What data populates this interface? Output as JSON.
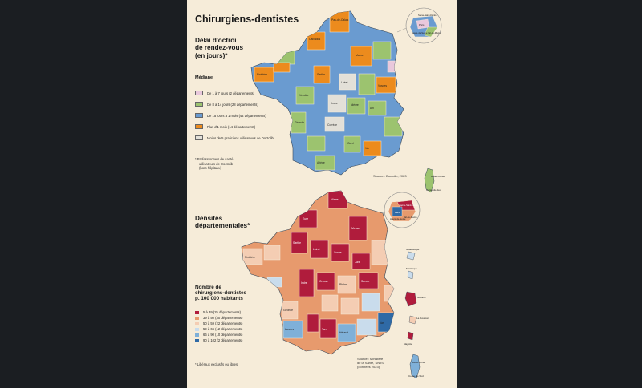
{
  "title": "Chirurgiens-dentistes",
  "map1": {
    "heading": [
      "Délai d'octroi",
      "de rendez-vous",
      "(en jours)*"
    ],
    "subheading": "Médiane",
    "legend": [
      {
        "label": "De 1 à 7 jours (2 départements)",
        "color": "#e9c8dc"
      },
      {
        "label": "De 8 à 14 jours (28 départements)",
        "color": "#9cc36f"
      },
      {
        "label": "De 15 jours à 1 mois (44 départements)",
        "color": "#6a9bd0"
      },
      {
        "label": "Plus d'1 mois (14 départements)",
        "color": "#ec8b1d"
      },
      {
        "label": "Moins de 5 praticiens utilisateurs de Doctolib",
        "color": "#e3e0d8"
      }
    ],
    "footnote": [
      "* Professionnels de santé",
      "utilisateurs de Doctolib",
      "(hors hôpitaux)"
    ],
    "source": "Source : Doctolib, 2023",
    "inset": [
      "Seine-Saint-Denis",
      "Paris",
      "Val-de-Marne",
      "Hauts-de-Seine"
    ],
    "corse": [
      "Haute-Corse",
      "Corse-du-Sud"
    ]
  },
  "map2": {
    "heading": [
      "Densités",
      "départementales*"
    ],
    "legend_title": [
      "Nombre de",
      "chirurgiens-dentistes",
      "p. 100 000 habitants"
    ],
    "legend": [
      {
        "label": "5 à 39 (25 départements)",
        "color": "#b01c3c"
      },
      {
        "label": "39 à 50 (30 départements)",
        "color": "#e79a6d"
      },
      {
        "label": "50 à 59 (22 départements)",
        "color": "#f4cdb3"
      },
      {
        "label": "59 à 66 (12 départements)",
        "color": "#c9dcec"
      },
      {
        "label": "66 à 90 (10 départements)",
        "color": "#7fb0d8"
      },
      {
        "label": "90 à 102 (2 départements)",
        "color": "#2f6aa6"
      }
    ],
    "footnote": "* Libéraux exclusifs ou libres",
    "source": [
      "Source : Ministère",
      "de la Santé, SNIIS",
      "(données 2023)"
    ],
    "inset": [
      "Seine-Saint-Denis",
      "Paris",
      "Val-de-Marne",
      "Hauts-de-Seine"
    ],
    "corse": [
      "Haute-Corse",
      "Corse-du-Sud"
    ],
    "dom": [
      "Guadeloupe",
      "Martinique",
      "Guyane",
      "La Réunion",
      "Mayotte"
    ]
  }
}
